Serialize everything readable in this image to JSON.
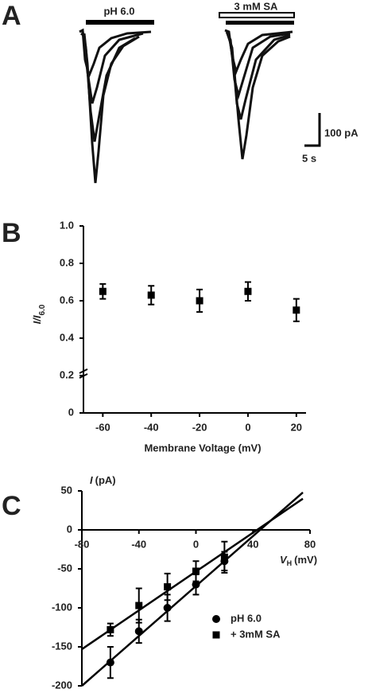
{
  "panel_a": {
    "letter": "A",
    "label_left": "pH 6.0",
    "label_right": "3 mM SA",
    "scale_current": "100 pA",
    "scale_time": "5 s"
  },
  "chart_data": [
    {
      "type": "scatter",
      "panel": "B",
      "x_label": "Membrane Voltage (mV)",
      "y_label": "I/I",
      "y_label_sub": "6.0",
      "x": [
        -60,
        -40,
        -20,
        0,
        20
      ],
      "series": [
        {
          "values": [
            0.65,
            0.63,
            0.6,
            0.65,
            0.55
          ],
          "errors": [
            0.04,
            0.05,
            0.06,
            0.05,
            0.06
          ],
          "color": "#000000",
          "marker": "square"
        }
      ],
      "xlim": [
        -68,
        24
      ],
      "ylim": [
        0,
        1
      ],
      "xticks": [
        -60,
        -40,
        -20,
        0,
        20
      ],
      "yticks": [
        0,
        0.2,
        0.4,
        0.6,
        0.8,
        {
          "value": 1,
          "label": "1.0"
        }
      ]
    },
    {
      "type": "scatter",
      "panel": "C",
      "x_label": "V",
      "x_label_sub": "H",
      "x_label_unit": "(mV)",
      "y_label": "I",
      "y_label_unit": "(pA)",
      "x": [
        -60,
        -40,
        -20,
        0,
        20
      ],
      "series": [
        {
          "name": "pH 6.0",
          "values": [
            -170,
            -130,
            -100,
            -70,
            -40
          ],
          "errors": [
            20,
            15,
            17,
            13,
            12
          ],
          "color": "#000000",
          "marker": "circle",
          "fit_x": [
            -80,
            75
          ],
          "fit_y": [
            -200,
            48
          ]
        },
        {
          "name": "+ 3mM SA",
          "values": [
            -128,
            -97,
            -73,
            -53,
            -35
          ],
          "errors": [
            8,
            22,
            17,
            13,
            20
          ],
          "color": "#000000",
          "marker": "square",
          "fit_x": [
            -80,
            75
          ],
          "fit_y": [
            -153,
            40
          ]
        }
      ],
      "xlim": [
        -80,
        80
      ],
      "ylim": [
        -200,
        50
      ],
      "xticks": [
        -80,
        -40,
        0,
        40,
        80
      ],
      "yticks": [
        50,
        0,
        -50,
        -100,
        -150,
        -200
      ]
    }
  ]
}
